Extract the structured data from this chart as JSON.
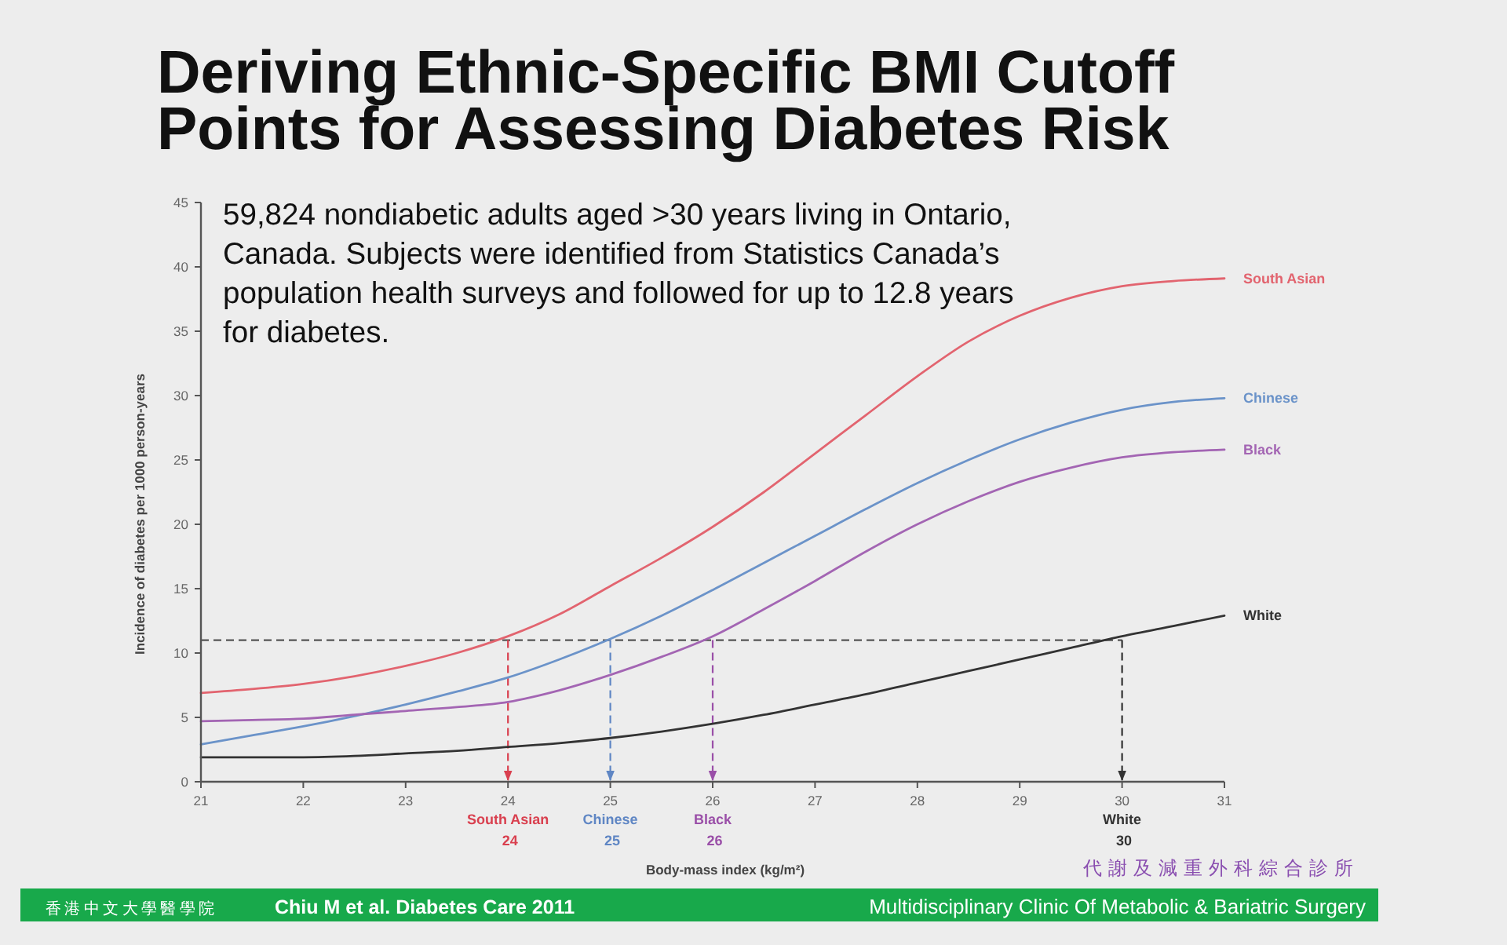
{
  "chart_data": {
    "type": "line",
    "title": "Deriving Ethnic-Specific BMI Cutoff Points for Assessing Diabetes Risk",
    "xlabel": "Body-mass index (kg/m²)",
    "ylabel": "Incidence of diabetes per 1000 person-years",
    "x": [
      21,
      21.5,
      22,
      22.5,
      23,
      23.5,
      24,
      24.5,
      25,
      25.5,
      26,
      26.5,
      27,
      27.5,
      28,
      28.5,
      29,
      29.5,
      30,
      30.5,
      31
    ],
    "series": [
      {
        "name": "South Asian",
        "color": "#e2646f",
        "values": [
          6.9,
          7.2,
          7.6,
          8.2,
          9.0,
          10.0,
          11.3,
          13.0,
          15.2,
          17.4,
          19.8,
          22.5,
          25.5,
          28.5,
          31.5,
          34.2,
          36.2,
          37.6,
          38.5,
          38.9,
          39.1
        ]
      },
      {
        "name": "Chinese",
        "color": "#6b93c9",
        "values": [
          2.9,
          3.6,
          4.3,
          5.1,
          6.0,
          7.0,
          8.1,
          9.5,
          11.1,
          12.9,
          14.9,
          17.0,
          19.1,
          21.2,
          23.2,
          25.0,
          26.6,
          27.9,
          28.9,
          29.5,
          29.8
        ]
      },
      {
        "name": "Black",
        "color": "#a365b3",
        "values": [
          4.7,
          4.8,
          4.9,
          5.2,
          5.5,
          5.8,
          6.2,
          7.1,
          8.3,
          9.7,
          11.3,
          13.4,
          15.6,
          17.9,
          20.0,
          21.8,
          23.3,
          24.4,
          25.2,
          25.6,
          25.8
        ]
      },
      {
        "name": "White",
        "color": "#333333",
        "values": [
          1.9,
          1.9,
          1.9,
          2.0,
          2.2,
          2.4,
          2.7,
          3.0,
          3.4,
          3.9,
          4.5,
          5.2,
          6.0,
          6.8,
          7.7,
          8.6,
          9.5,
          10.4,
          11.3,
          12.1,
          12.9
        ]
      }
    ],
    "xlim": [
      21,
      31
    ],
    "xticks": [
      21,
      22,
      23,
      24,
      25,
      26,
      27,
      28,
      29,
      30,
      31
    ],
    "ylim": [
      0,
      45
    ],
    "yticks": [
      0,
      5,
      10,
      15,
      20,
      25,
      30,
      35,
      40,
      45
    ],
    "ref_lines": [
      {
        "axis": "y",
        "value": 11,
        "color": "#555555",
        "line_style": "dashed"
      },
      {
        "axis": "x",
        "value": 24,
        "label": "South Asian 24",
        "color": "#d9404f",
        "line_style": "dashed"
      },
      {
        "axis": "x",
        "value": 25,
        "label": "Chinese 25",
        "color": "#5f86c4",
        "line_style": "dashed"
      },
      {
        "axis": "x",
        "value": 26,
        "label": "Black 26",
        "color": "#9a4fa8",
        "line_style": "dashed"
      },
      {
        "axis": "x",
        "value": 30,
        "label": "White 30",
        "color": "#333333",
        "line_style": "dashed"
      }
    ],
    "annotations": [
      "59,824 nondiabetic adults aged >30 years living in Ontario, Canada. Subjects were identified from Statistics Canada’s population health surveys and followed for up to 12.8 years for diabetes.",
      "香港中文大學醫學院",
      "Chiu M et al. Diabetes Care 2011",
      "Multidisciplinary Clinic Of Metabolic & Bariatric Surgery",
      "代謝及減重外科綜合診所"
    ]
  }
}
